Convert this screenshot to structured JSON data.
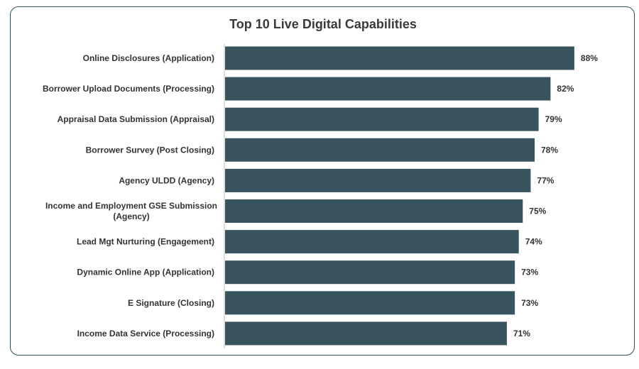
{
  "colors": {
    "bar": "#37545f",
    "frame": "#2f4f5c",
    "text": "#333333",
    "axis": "#bfbfbf"
  },
  "chart_data": {
    "type": "bar",
    "orientation": "horizontal",
    "title": "Top 10 Live Digital Capabilities",
    "xlabel": "",
    "ylabel": "",
    "grid": false,
    "legend": "none",
    "xlim": [
      0,
      100
    ],
    "categories": [
      "Online Disclosures (Application)",
      "Borrower Upload Documents (Processing)",
      "Appraisal Data Submission (Appraisal)",
      "Borrower Survey (Post Closing)",
      "Agency ULDD (Agency)",
      "Income and Employment GSE Submission (Agency)",
      "Lead Mgt Nurturing (Engagement)",
      "Dynamic Online App (Application)",
      "E Signature (Closing)",
      "Income Data Service (Processing)"
    ],
    "values": [
      88,
      82,
      79,
      78,
      77,
      75,
      74,
      73,
      73,
      71
    ],
    "data_labels": [
      "88%",
      "82%",
      "79%",
      "78%",
      "77%",
      "75%",
      "74%",
      "73%",
      "73%",
      "71%"
    ]
  }
}
